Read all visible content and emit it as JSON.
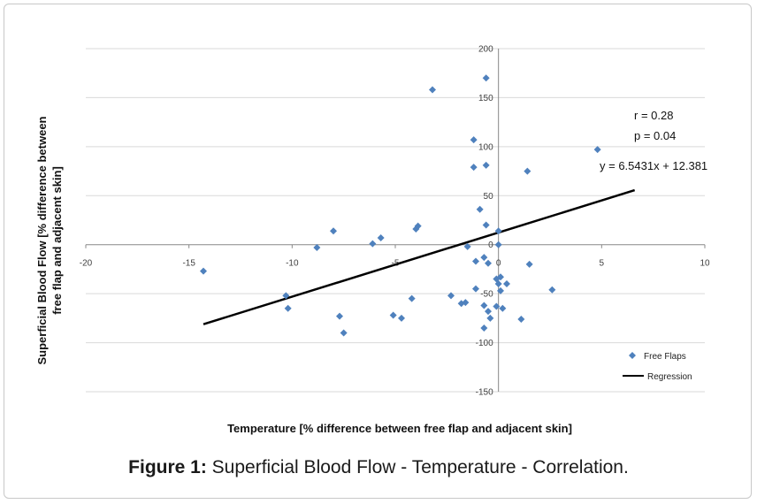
{
  "caption": {
    "label": "Figure 1:",
    "text": " Superficial Blood Flow - Temperature - Correlation."
  },
  "chart_data": {
    "type": "scatter",
    "title": "",
    "xlabel": "Temperature [% difference between  free flap and adjacent skin]",
    "ylabel_line1": "Superficial Blood Flow [% difference between",
    "ylabel_line2": "free flap and adjacent skin]",
    "xlim": [
      -20,
      10
    ],
    "ylim": [
      -150,
      200
    ],
    "x_ticks": [
      -20,
      -15,
      -10,
      -5,
      0,
      5,
      10
    ],
    "y_ticks": [
      -150,
      -100,
      -50,
      0,
      50,
      100,
      150,
      200
    ],
    "grid": true,
    "legend_position": "bottom-right",
    "series": [
      {
        "name": "Free Flaps",
        "color": "#4f81bd",
        "marker": "diamond",
        "points": [
          [
            -14.3,
            -27
          ],
          [
            -10.3,
            -52
          ],
          [
            -10.2,
            -65
          ],
          [
            -8.8,
            -3
          ],
          [
            -8.0,
            14
          ],
          [
            -7.7,
            -73
          ],
          [
            -7.5,
            -90
          ],
          [
            -6.1,
            1
          ],
          [
            -5.7,
            7
          ],
          [
            -5.1,
            -72
          ],
          [
            -4.7,
            -75
          ],
          [
            -4.2,
            -55
          ],
          [
            -4.0,
            16
          ],
          [
            -3.9,
            19
          ],
          [
            -3.2,
            158
          ],
          [
            -2.3,
            -52
          ],
          [
            -1.8,
            -60
          ],
          [
            -1.5,
            -2
          ],
          [
            -1.6,
            -59
          ],
          [
            -1.2,
            107
          ],
          [
            -1.2,
            79
          ],
          [
            -1.1,
            -45
          ],
          [
            -1.1,
            -17
          ],
          [
            -0.9,
            36
          ],
          [
            -0.7,
            -13
          ],
          [
            -0.7,
            -62
          ],
          [
            -0.6,
            170
          ],
          [
            -0.6,
            20
          ],
          [
            -0.6,
            81
          ],
          [
            -0.5,
            -68
          ],
          [
            -0.5,
            -19
          ],
          [
            -0.4,
            -75
          ],
          [
            -0.7,
            -85
          ],
          [
            -0.1,
            -63
          ],
          [
            -0.1,
            -35
          ],
          [
            0.0,
            -40
          ],
          [
            0.0,
            0
          ],
          [
            0.0,
            14
          ],
          [
            0.1,
            -47
          ],
          [
            0.1,
            -33
          ],
          [
            0.2,
            -65
          ],
          [
            0.4,
            -40
          ],
          [
            1.1,
            -76
          ],
          [
            1.4,
            75
          ],
          [
            1.5,
            -20
          ],
          [
            2.6,
            -46
          ],
          [
            4.8,
            97
          ]
        ]
      },
      {
        "name": "Regression",
        "color": "#000000",
        "type": "line",
        "slope": 6.5431,
        "intercept": 12.381,
        "x_range": [
          -14.3,
          6.6
        ]
      }
    ],
    "annotations": {
      "r": "r = 0.28",
      "p": "p = 0.04",
      "equation": "y = 6.5431x + 12.381"
    }
  }
}
